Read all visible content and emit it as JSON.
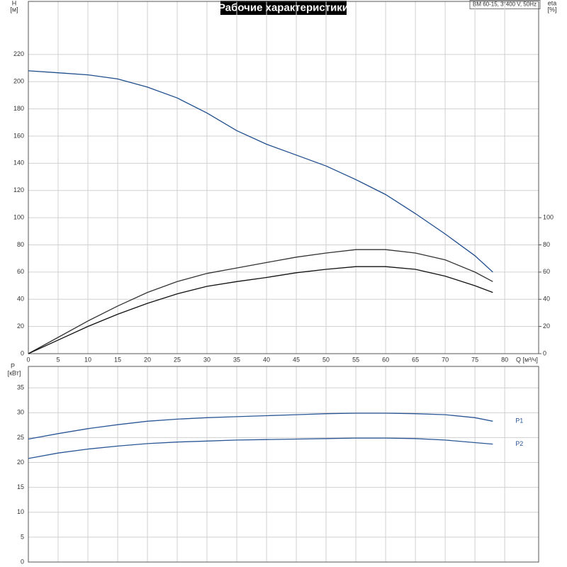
{
  "chart_data": [
    {
      "type": "line",
      "title": "Рабочие характеристики",
      "subtitle": "BM 60-15, 3*400 V, 50Hz",
      "x_label": "Q [м³/ч]",
      "y_label": "H",
      "y_unit": "[м]",
      "y2_label": "eta",
      "y2_unit": "[%]",
      "x": [
        0,
        5,
        10,
        15,
        20,
        25,
        30,
        35,
        40,
        45,
        50,
        55,
        60,
        65,
        70,
        75,
        78
      ],
      "xlim": [
        0,
        85.7
      ],
      "xticks": [
        0,
        5,
        10,
        15,
        20,
        25,
        30,
        35,
        40,
        45,
        50,
        55,
        60,
        65,
        70,
        75,
        80
      ],
      "ylim": [
        0,
        259
      ],
      "yticks": [
        0,
        20,
        40,
        60,
        80,
        100,
        120,
        140,
        160,
        180,
        200,
        220
      ],
      "y2lim": [
        0,
        259
      ],
      "y2ticks": [
        0,
        20,
        40,
        60,
        80,
        100
      ],
      "series": [
        {
          "color": "#1f4e8c",
          "values": [
            208,
            206.5,
            205,
            202,
            196,
            188,
            177,
            164,
            154,
            146,
            138,
            128,
            117,
            103,
            88,
            72,
            60
          ]
        },
        {
          "color": "#333333",
          "axis": "y2",
          "values": [
            0,
            12,
            24,
            35,
            45,
            53,
            59,
            63,
            67,
            71,
            74,
            76.5,
            76.5,
            74,
            69,
            60,
            53
          ]
        },
        {
          "color": "#111111",
          "axis": "y2",
          "values": [
            0,
            10,
            20,
            29,
            37,
            44,
            49.5,
            53,
            56,
            59.5,
            62,
            64,
            64,
            62,
            57,
            50,
            45
          ]
        }
      ]
    },
    {
      "type": "line",
      "y_label": "P",
      "y_unit": "[кВт]",
      "x": [
        0,
        5,
        10,
        15,
        20,
        25,
        30,
        35,
        40,
        45,
        50,
        55,
        60,
        65,
        70,
        75,
        78
      ],
      "xlim": [
        0,
        85.7
      ],
      "xticks": [
        0,
        5,
        10,
        15,
        20,
        25,
        30,
        35,
        40,
        45,
        50,
        55,
        60,
        65,
        70,
        75,
        80
      ],
      "ylim": [
        0,
        39.3
      ],
      "yticks": [
        0,
        5,
        10,
        15,
        20,
        25,
        30,
        35
      ],
      "series": [
        {
          "name": "P1",
          "color": "#2b5797",
          "values": [
            24.7,
            25.8,
            26.8,
            27.6,
            28.3,
            28.7,
            29.0,
            29.2,
            29.4,
            29.6,
            29.8,
            29.9,
            29.9,
            29.8,
            29.6,
            29.0,
            28.3
          ]
        },
        {
          "name": "P2",
          "color": "#2b5797",
          "values": [
            20.8,
            21.9,
            22.7,
            23.3,
            23.8,
            24.1,
            24.3,
            24.5,
            24.6,
            24.7,
            24.8,
            24.9,
            24.9,
            24.8,
            24.5,
            24.0,
            23.7
          ]
        }
      ]
    }
  ]
}
